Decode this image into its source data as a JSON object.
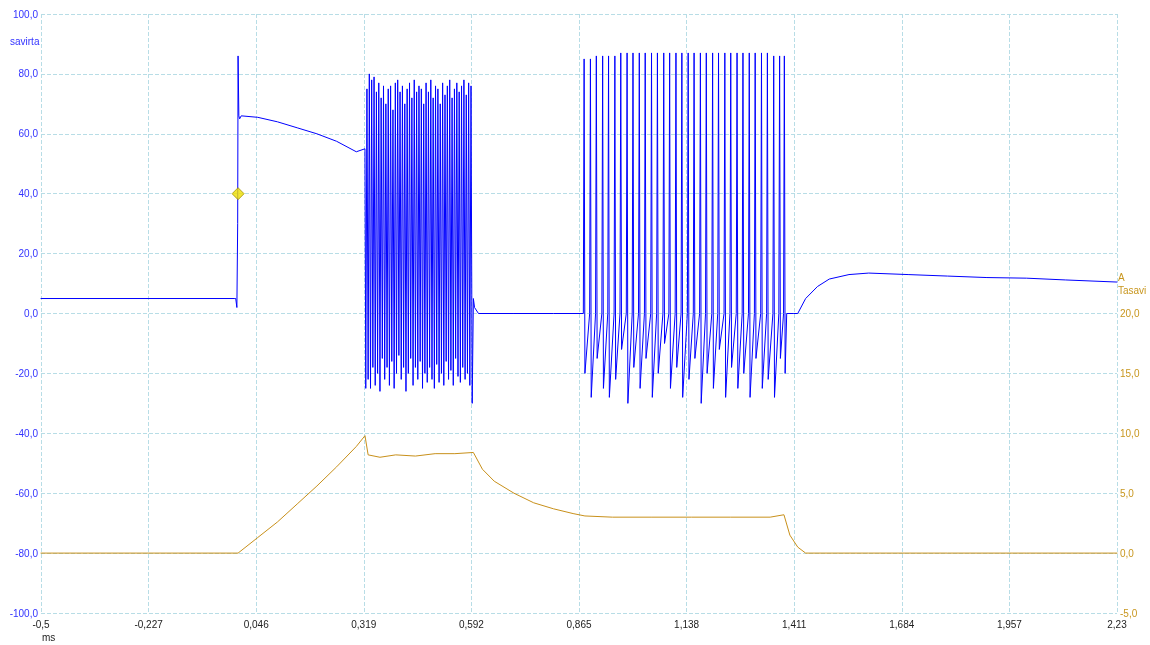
{
  "chart_data": {
    "type": "line",
    "xlabel": "ms",
    "ylabel": "savirta",
    "y2label": "A\nTasavi",
    "xlim": [
      -0.5,
      2.23
    ],
    "xticks": [
      {
        "value": -0.5,
        "label": "-0,5"
      },
      {
        "value": -0.227,
        "label": "-0,227"
      },
      {
        "value": 0.046,
        "label": "0,046"
      },
      {
        "value": 0.319,
        "label": "0,319"
      },
      {
        "value": 0.592,
        "label": "0,592"
      },
      {
        "value": 0.865,
        "label": "0,865"
      },
      {
        "value": 1.138,
        "label": "1,138"
      },
      {
        "value": 1.411,
        "label": "1,411"
      },
      {
        "value": 1.684,
        "label": "1,684"
      },
      {
        "value": 1.957,
        "label": "1,957"
      },
      {
        "value": 2.23,
        "label": "2,23"
      }
    ],
    "ylim": [
      -100,
      100
    ],
    "yticks": [
      {
        "value": -100,
        "label": "-100,0"
      },
      {
        "value": -80,
        "label": "-80,0"
      },
      {
        "value": -60,
        "label": "-60,0"
      },
      {
        "value": -40,
        "label": "-40,0"
      },
      {
        "value": -20,
        "label": "-20,0"
      },
      {
        "value": 0,
        "label": "0,0"
      },
      {
        "value": 20,
        "label": "20,0"
      },
      {
        "value": 40,
        "label": "40,0"
      },
      {
        "value": 60,
        "label": "60,0"
      },
      {
        "value": 80,
        "label": "80,0"
      },
      {
        "value": 100,
        "label": "100,0"
      }
    ],
    "y2lim": [
      -5,
      45
    ],
    "y2ticks": [
      {
        "value": -5,
        "label": "-5,0"
      },
      {
        "value": 0,
        "label": "0,0"
      },
      {
        "value": 5,
        "label": "5,0"
      },
      {
        "value": 10,
        "label": "10,0"
      },
      {
        "value": 15,
        "label": "15,0"
      },
      {
        "value": 20,
        "label": "20,0"
      }
    ],
    "grid": true,
    "marker": "none",
    "line_style": "solid",
    "series": [
      {
        "color": "#0000ff",
        "x": [
          -0.5,
          -0.01,
          -0.006,
          -0.003,
          -0.001,
          0.0,
          0.002,
          0.004,
          0.008,
          0.05,
          0.1,
          0.15,
          0.2,
          0.25,
          0.3,
          0.322,
          0.324,
          0.327,
          0.33,
          0.333,
          0.336,
          0.339,
          0.342,
          0.345,
          0.348,
          0.351,
          0.354,
          0.357,
          0.36,
          0.363,
          0.366,
          0.369,
          0.372,
          0.375,
          0.378,
          0.381,
          0.384,
          0.387,
          0.39,
          0.393,
          0.396,
          0.399,
          0.402,
          0.405,
          0.408,
          0.411,
          0.414,
          0.417,
          0.42,
          0.423,
          0.426,
          0.429,
          0.432,
          0.435,
          0.438,
          0.441,
          0.444,
          0.447,
          0.45,
          0.453,
          0.456,
          0.459,
          0.462,
          0.465,
          0.468,
          0.471,
          0.474,
          0.477,
          0.48,
          0.483,
          0.486,
          0.489,
          0.492,
          0.495,
          0.498,
          0.501,
          0.504,
          0.507,
          0.51,
          0.513,
          0.516,
          0.519,
          0.522,
          0.525,
          0.528,
          0.531,
          0.534,
          0.537,
          0.54,
          0.543,
          0.546,
          0.549,
          0.552,
          0.555,
          0.558,
          0.561,
          0.564,
          0.567,
          0.57,
          0.573,
          0.576,
          0.579,
          0.582,
          0.585,
          0.588,
          0.591,
          0.594,
          0.597,
          0.6,
          0.61,
          0.7,
          0.8,
          0.87,
          0.876,
          0.878,
          0.88,
          0.892,
          0.894,
          0.896,
          0.907,
          0.909,
          0.911,
          0.923,
          0.925,
          0.927,
          0.938,
          0.94,
          0.942,
          0.954,
          0.956,
          0.958,
          0.969,
          0.971,
          0.973,
          0.985,
          0.987,
          0.989,
          1.0,
          1.002,
          1.004,
          1.016,
          1.018,
          1.02,
          1.031,
          1.033,
          1.035,
          1.047,
          1.049,
          1.051,
          1.062,
          1.064,
          1.066,
          1.078,
          1.08,
          1.082,
          1.093,
          1.095,
          1.097,
          1.109,
          1.111,
          1.113,
          1.124,
          1.126,
          1.128,
          1.14,
          1.142,
          1.144,
          1.155,
          1.157,
          1.159,
          1.171,
          1.173,
          1.175,
          1.186,
          1.188,
          1.19,
          1.202,
          1.204,
          1.206,
          1.217,
          1.219,
          1.221,
          1.233,
          1.235,
          1.237,
          1.248,
          1.25,
          1.252,
          1.264,
          1.266,
          1.268,
          1.279,
          1.281,
          1.283,
          1.295,
          1.297,
          1.299,
          1.31,
          1.312,
          1.314,
          1.326,
          1.328,
          1.33,
          1.341,
          1.343,
          1.345,
          1.357,
          1.359,
          1.361,
          1.372,
          1.374,
          1.376,
          1.384,
          1.386,
          1.388,
          1.392,
          1.41,
          1.42,
          1.44,
          1.47,
          1.5,
          1.55,
          1.6,
          1.7,
          1.8,
          1.9,
          2.0,
          2.1,
          2.23
        ],
        "values": [
          5,
          5,
          5,
          2,
          30,
          86,
          66,
          65,
          66,
          65.5,
          64,
          62,
          60,
          57.5,
          54,
          55,
          -25,
          75,
          -22,
          80,
          -25,
          78,
          -18,
          79,
          -24,
          74,
          -20,
          77,
          -26,
          72,
          -15,
          76,
          -22,
          70,
          -18,
          75,
          -24,
          76,
          -16,
          68,
          -25,
          77,
          -20,
          78,
          -14,
          74,
          -22,
          76,
          -18,
          70,
          -26,
          75,
          -20,
          77,
          -15,
          72,
          -24,
          78,
          -18,
          74,
          -22,
          76,
          -16,
          75,
          -25,
          70,
          -20,
          77,
          -23,
          74,
          -18,
          78,
          -22,
          72,
          -25,
          76,
          -17,
          75,
          -23,
          70,
          -20,
          77,
          -24,
          73,
          -16,
          76,
          -22,
          78,
          -19,
          72,
          -24,
          75,
          -15,
          77,
          -21,
          74,
          -23,
          76,
          -18,
          78,
          -22,
          73,
          -20,
          77,
          -24,
          76,
          -30,
          5,
          2,
          0,
          0,
          0,
          0,
          0,
          85,
          -20,
          0,
          85,
          -28,
          0,
          86,
          -15,
          0,
          86,
          -25,
          0,
          86,
          -28,
          0,
          86,
          -22,
          0,
          87,
          -12,
          0,
          87,
          -30,
          0,
          87,
          -18,
          0,
          87,
          -25,
          0,
          87,
          -15,
          0,
          87,
          -28,
          0,
          87,
          -20,
          0,
          87,
          -10,
          0,
          87,
          -25,
          0,
          87,
          -18,
          0,
          87,
          -28,
          0,
          87,
          -22,
          0,
          87,
          -15,
          0,
          87,
          -30,
          0,
          87,
          -20,
          0,
          87,
          -25,
          0,
          87,
          -12,
          0,
          87,
          -28,
          0,
          87,
          -18,
          0,
          87,
          -25,
          0,
          87,
          -20,
          0,
          87,
          -28,
          0,
          87,
          -15,
          0,
          87,
          -25,
          0,
          87,
          -22,
          0,
          86,
          -28,
          0,
          86,
          -15,
          0,
          86,
          -20,
          0,
          0,
          0,
          5,
          9,
          11.5,
          13,
          13.5,
          13,
          12.5,
          12,
          11.8,
          11.2,
          10.5
        ]
      },
      {
        "color": "#c8901a",
        "axis": "y2",
        "x": [
          -0.5,
          0.0,
          0.05,
          0.1,
          0.15,
          0.2,
          0.25,
          0.3,
          0.322,
          0.33,
          0.36,
          0.4,
          0.45,
          0.5,
          0.55,
          0.597,
          0.62,
          0.65,
          0.7,
          0.75,
          0.8,
          0.85,
          0.88,
          0.95,
          1.05,
          1.15,
          1.25,
          1.35,
          1.385,
          1.4,
          1.42,
          1.44,
          1.6,
          1.8,
          2.0,
          2.23
        ],
        "values": [
          0,
          0,
          1.3,
          2.6,
          4.1,
          5.6,
          7.2,
          8.9,
          9.8,
          8.2,
          8.0,
          8.2,
          8.1,
          8.3,
          8.3,
          8.4,
          7.0,
          6.0,
          5.0,
          4.2,
          3.7,
          3.3,
          3.1,
          3.0,
          3.0,
          3.0,
          3.0,
          3.0,
          3.2,
          1.5,
          0.5,
          0,
          0,
          0,
          0,
          0
        ]
      },
      {
        "type": "scatter",
        "color": "#f0e000",
        "marker": "diamond",
        "x": [
          0.0
        ],
        "values": [
          40
        ]
      }
    ]
  }
}
